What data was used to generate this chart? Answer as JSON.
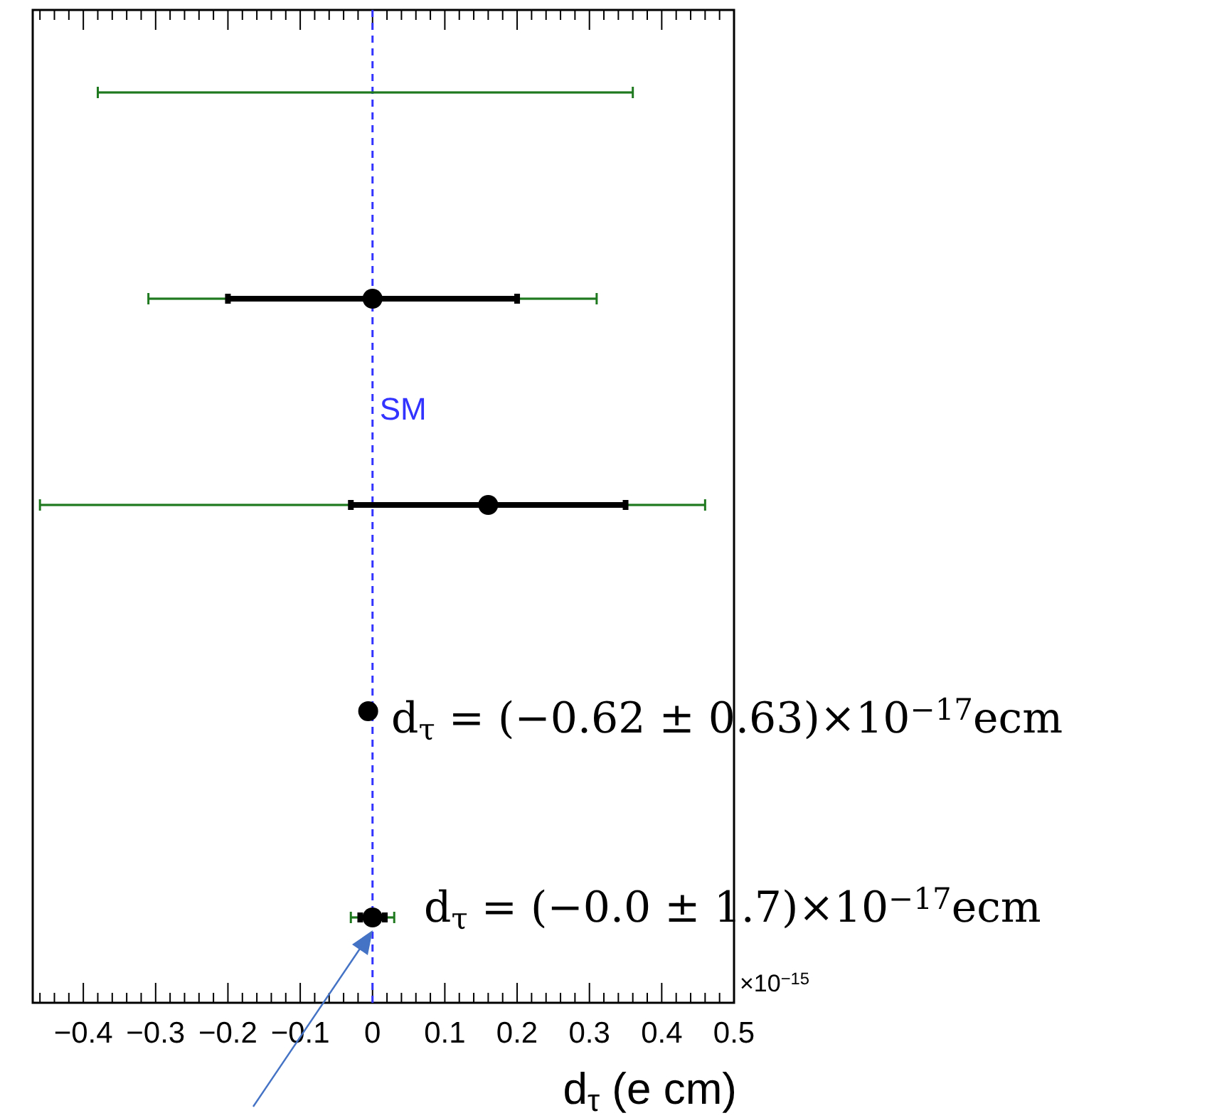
{
  "chart_data": {
    "type": "scatter",
    "orientation": "horizontal",
    "xlabel": "d$_{τ}$ (e cm)",
    "categories": [
      null,
      null,
      null,
      null,
      null
    ],
    "xlim": [
      -0.47,
      0.5
    ],
    "xticks": [
      {
        "value": -0.4,
        "label": "−0.4"
      },
      {
        "value": -0.3,
        "label": "−0.3"
      },
      {
        "value": -0.2,
        "label": "−0.2"
      },
      {
        "value": -0.1,
        "label": "−0.1"
      },
      0,
      0.1,
      0.2,
      0.3,
      0.4,
      0.5
    ],
    "grid": false,
    "series": [
      {
        "type": "bar",
        "color": "#1f7a1f",
        "base": [
          -0.38,
          -0.31,
          -0.46,
          null,
          -0.03
        ],
        "values": [
          0.74,
          0.62,
          0.92,
          null,
          0.06
        ]
      },
      {
        "marker": "circle",
        "color": "#000000",
        "values": [
          null,
          0,
          0.16,
          -0.006,
          0
        ],
        "errors": [
          null,
          [
            -0.2,
            0.2
          ],
          [
            -0.03,
            0.35
          ],
          null,
          [
            -0.017,
            0.017
          ]
        ]
      }
    ],
    "ref_lines": [
      {
        "axis": "x",
        "value": 0,
        "label": "SM",
        "color": "#3333ff",
        "line_style": "dashed"
      }
    ],
    "annotations": [
      "d$_{τ}$ = (−0.62 ± 0.63)×10$^{−17}$ecm",
      "d$_{τ}$ = (−0.0 ± 1.7)×10$^{−17}$ecm",
      "×10$^{−15}$"
    ]
  }
}
